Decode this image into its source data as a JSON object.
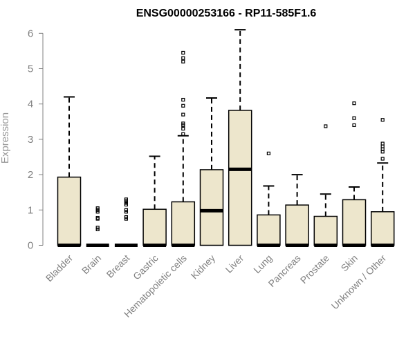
{
  "chart_data": {
    "type": "boxplot",
    "title": "ENSG00000253166 - RP11-585F1.6",
    "ylabel": "Expression",
    "xlabel": "",
    "ylim": [
      0,
      6.2
    ],
    "yticks": [
      "0",
      "1",
      "2",
      "3",
      "4",
      "5",
      "6"
    ],
    "colors": {
      "box_fill": "#ede6cc",
      "stroke": "#000000",
      "axis": "#808080",
      "tick_text": "#808080"
    },
    "categories": [
      "Bladder",
      "Brain",
      "Breast",
      "Gastric",
      "Hematopoietic cells",
      "Kidney",
      "Liver",
      "Lung",
      "Pancreas",
      "Prostate",
      "Skin",
      "Unknown / Other"
    ],
    "boxes": [
      {
        "category": "Bladder",
        "q1": 0,
        "median": 0,
        "q3": 1.93,
        "whisker_low": 0,
        "whisker_high": 4.2,
        "outliers": []
      },
      {
        "category": "Brain",
        "q1": 0,
        "median": 0,
        "q3": 0,
        "whisker_low": 0,
        "whisker_high": 0,
        "outliers": [
          0.45,
          0.5,
          0.75,
          0.78,
          0.95,
          1.0,
          1.05
        ]
      },
      {
        "category": "Breast",
        "q1": 0,
        "median": 0,
        "q3": 0,
        "whisker_low": 0,
        "whisker_high": 0,
        "outliers": [
          0.75,
          0.8,
          0.95,
          1.0,
          1.15,
          1.2,
          1.25,
          1.3
        ]
      },
      {
        "category": "Gastric",
        "q1": 0,
        "median": 0,
        "q3": 1.02,
        "whisker_low": 0,
        "whisker_high": 2.52,
        "outliers": []
      },
      {
        "category": "Hematopoietic cells",
        "q1": 0,
        "median": 0,
        "q3": 1.23,
        "whisker_low": 0,
        "whisker_high": 3.1,
        "outliers": [
          3.15,
          3.3,
          3.4,
          3.45,
          3.7,
          3.95,
          4.12,
          5.2,
          5.3,
          5.45
        ]
      },
      {
        "category": "Kidney",
        "q1": 0,
        "median": 0.98,
        "q3": 2.14,
        "whisker_low": 0,
        "whisker_high": 4.17,
        "outliers": []
      },
      {
        "category": "Liver",
        "q1": 0,
        "median": 2.15,
        "q3": 3.82,
        "whisker_low": 0,
        "whisker_high": 6.1,
        "outliers": []
      },
      {
        "category": "Lung",
        "q1": 0,
        "median": 0,
        "q3": 0.86,
        "whisker_low": 0,
        "whisker_high": 1.68,
        "outliers": [
          2.6
        ]
      },
      {
        "category": "Pancreas",
        "q1": 0,
        "median": 0,
        "q3": 1.14,
        "whisker_low": 0,
        "whisker_high": 2.0,
        "outliers": []
      },
      {
        "category": "Prostate",
        "q1": 0,
        "median": 0,
        "q3": 0.82,
        "whisker_low": 0,
        "whisker_high": 1.45,
        "outliers": [
          3.37
        ]
      },
      {
        "category": "Skin",
        "q1": 0,
        "median": 0,
        "q3": 1.29,
        "whisker_low": 0,
        "whisker_high": 1.65,
        "outliers": [
          3.4,
          3.6,
          4.02
        ]
      },
      {
        "category": "Unknown / Other",
        "q1": 0,
        "median": 0,
        "q3": 0.95,
        "whisker_low": 0,
        "whisker_high": 2.33,
        "outliers": [
          2.45,
          2.65,
          2.72,
          2.8,
          2.88,
          3.55
        ]
      }
    ]
  }
}
